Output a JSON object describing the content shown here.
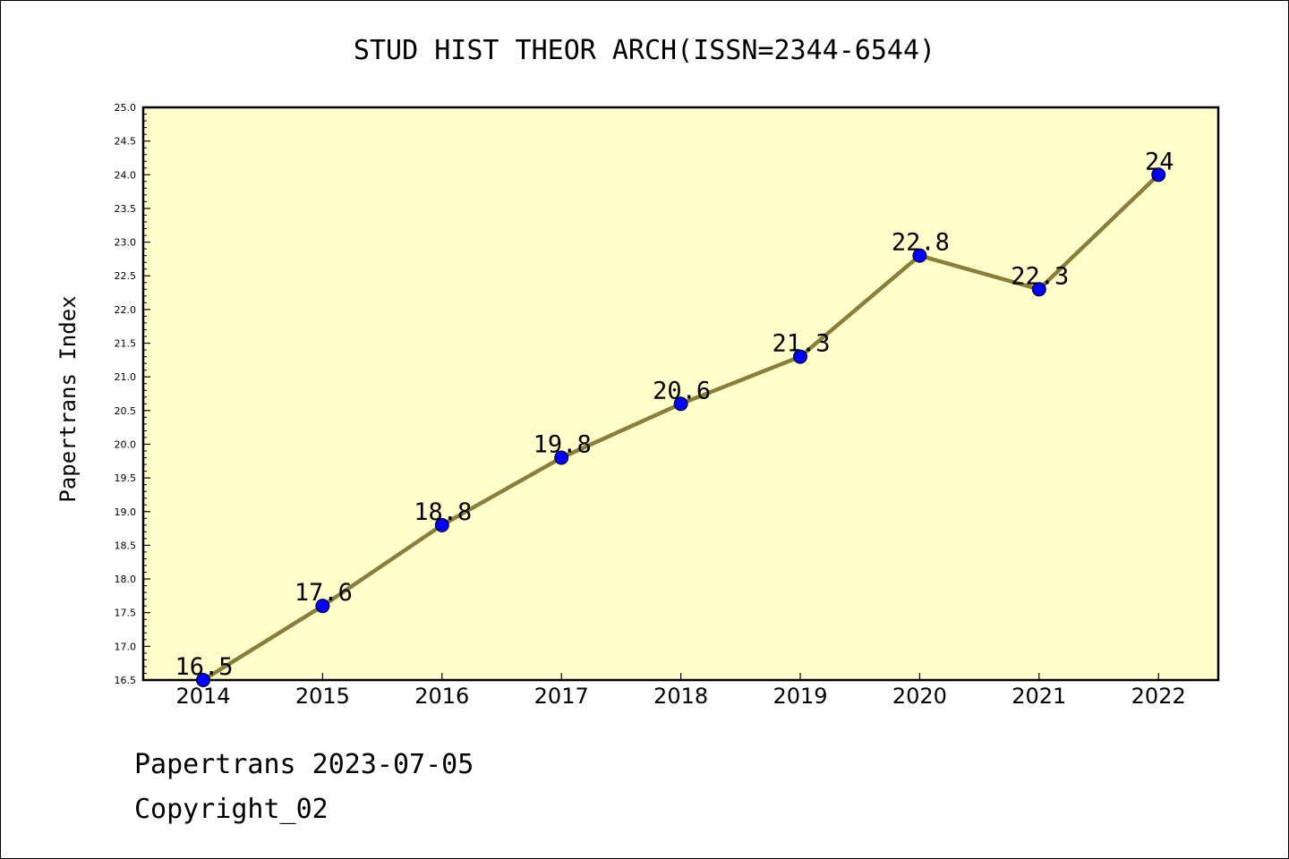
{
  "chart_data": {
    "type": "line",
    "title": "STUD HIST THEOR ARCH(ISSN=2344-6544)",
    "ylabel": "Papertrans Index",
    "xlabel": "",
    "categories": [
      "2014",
      "2015",
      "2016",
      "2017",
      "2018",
      "2019",
      "2020",
      "2021",
      "2022"
    ],
    "values": [
      16.5,
      17.6,
      18.8,
      19.8,
      20.6,
      21.3,
      22.8,
      22.3,
      24
    ],
    "data_labels": [
      "16.5",
      "17.6",
      "18.8",
      "19.8",
      "20.6",
      "21.3",
      "22.8",
      "22.3",
      "24"
    ],
    "ylim": [
      16.5,
      25.0
    ],
    "yticks": [
      "16.5",
      "17.0",
      "17.5",
      "18.0",
      "18.5",
      "19.0",
      "19.5",
      "20.0",
      "20.5",
      "21.0",
      "21.5",
      "22.0",
      "22.5",
      "23.0",
      "23.5",
      "24.0",
      "24.5",
      "25.0"
    ],
    "grid": false,
    "colors": {
      "line": "#8b7d3a",
      "marker": "#0000ff",
      "plot_background": "#ffffcc"
    }
  },
  "footer": {
    "date_line": "Papertrans 2023-07-05",
    "copyright": "Copyright_02"
  }
}
